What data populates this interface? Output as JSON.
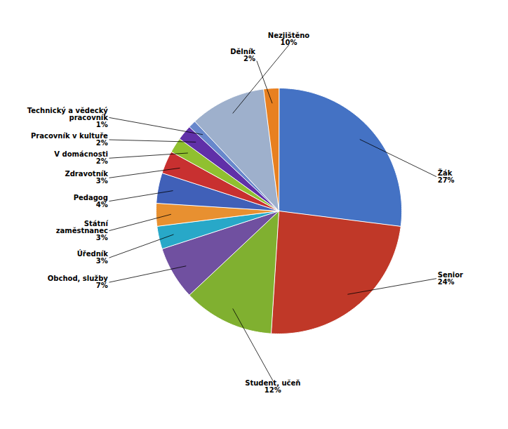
{
  "chart_data": {
    "type": "pie",
    "categories": [
      "Žák",
      "Senior",
      "Student, učeň",
      "Obchod, služby",
      "Úředník",
      "Státní\nzaměstnanec",
      "Pedagog",
      "Zdravotník",
      "V domácnosti",
      "Pracovník v kultuře",
      "Technický a vědecký\npracovník",
      "Nezjištěno",
      "Dělník"
    ],
    "values": [
      27,
      24,
      12,
      7,
      3,
      3,
      4,
      3,
      2,
      2,
      1,
      10,
      2
    ],
    "value_labels": [
      "27%",
      "24%",
      "12%",
      "7%",
      "3%",
      "3%",
      "4%",
      "3%",
      "2%",
      "2%",
      "1%",
      "10%",
      "2%"
    ],
    "colors": [
      "#4472C4",
      "#C03828",
      "#80B030",
      "#7050A0",
      "#28A8C8",
      "#E89030",
      "#4060B8",
      "#C83030",
      "#90C030",
      "#6030A8",
      "#6888CC",
      "#9EB0CC",
      "#E88020"
    ],
    "data_labels": true,
    "tick_labels": false
  }
}
